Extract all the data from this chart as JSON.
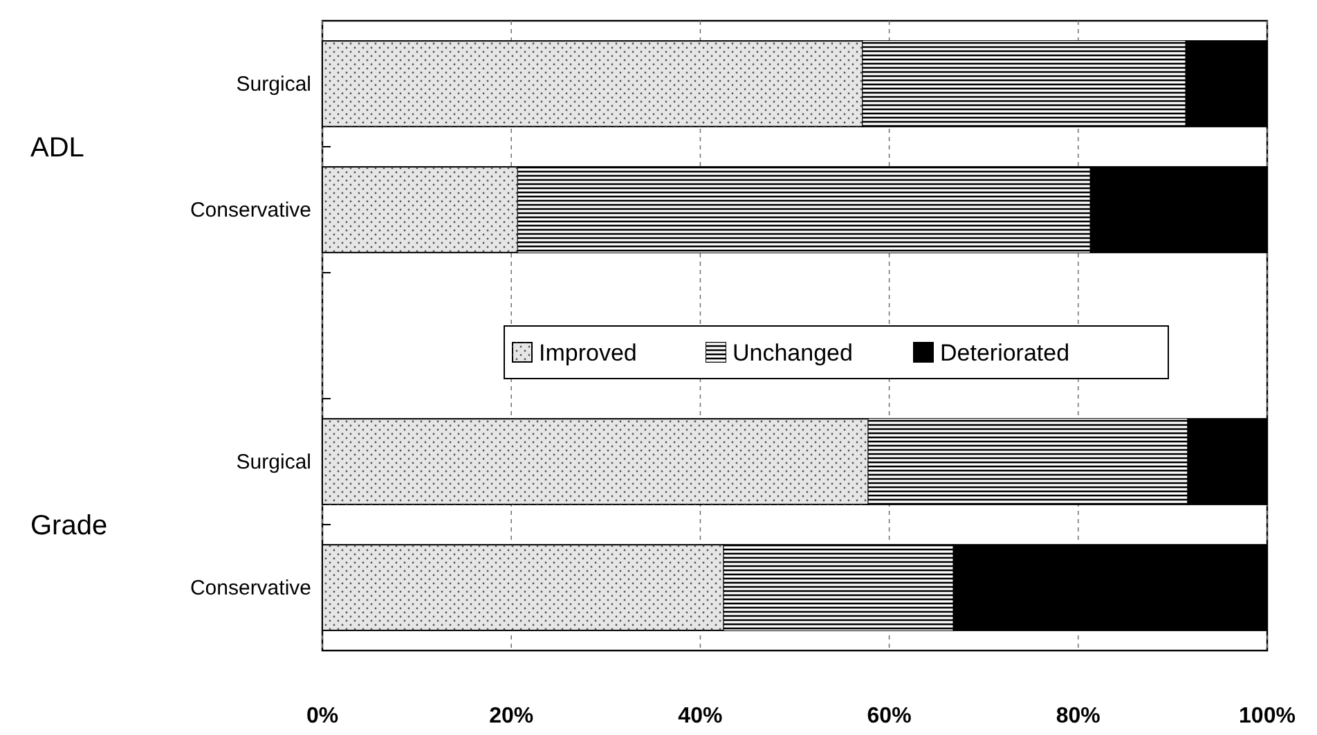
{
  "chart_data": {
    "type": "bar",
    "orientation": "horizontal",
    "stacked": true,
    "categories": [
      "Surgical",
      "Conservative",
      null,
      "Surgical",
      "Conservative"
    ],
    "series": [
      {
        "name": "Improved",
        "color": "#e6e6e6",
        "values": [
          57.2,
          20.7,
          null,
          57.8,
          42.5
        ]
      },
      {
        "name": "Unchanged",
        "color": "#8c8c8c",
        "values": [
          34.2,
          60.6,
          null,
          33.8,
          24.3
        ]
      },
      {
        "name": "Deteriorated",
        "color": "#000000",
        "values": [
          8.6,
          18.7,
          null,
          8.4,
          33.2
        ]
      }
    ],
    "xlim": [
      0,
      100
    ],
    "xticks": [
      {
        "value": 0,
        "label": "0%"
      },
      {
        "value": 20,
        "label": "20%"
      },
      {
        "value": 40,
        "label": "40%"
      },
      {
        "value": 60,
        "label": "60%"
      },
      {
        "value": 80,
        "label": "80%"
      },
      {
        "value": 100,
        "label": "100%"
      }
    ],
    "grid": "x",
    "legend": "center",
    "annotations": [
      "ADL",
      "Grade"
    ]
  }
}
